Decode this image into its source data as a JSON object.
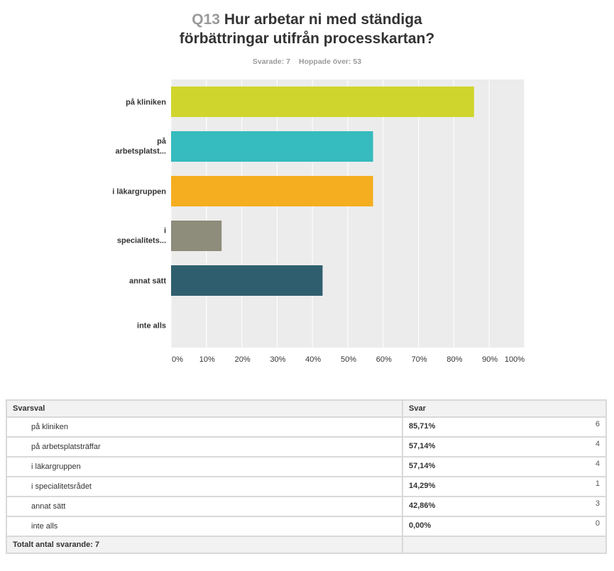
{
  "header": {
    "qnum": "Q13",
    "title_line1": "Hur arbetar ni med ständiga",
    "title_line2": "förbättringar utifrån processkartan?",
    "answered": "Svarade: 7",
    "skipped": "Hoppade över: 53"
  },
  "chart_data": {
    "type": "bar",
    "orientation": "horizontal",
    "categories": [
      "på kliniken",
      "på arbetsplatst...",
      "i läkargruppen",
      "i specialitets...",
      "annat sätt",
      "inte alls"
    ],
    "values": [
      85.71,
      57.14,
      57.14,
      14.29,
      42.86,
      0.0
    ],
    "colors": [
      "#d0d52d",
      "#36bbbe",
      "#f5ae20",
      "#8e8c7a",
      "#2f5f6e",
      "#cccccc"
    ],
    "xlim": [
      0,
      100
    ],
    "xticks": [
      "0%",
      "10%",
      "20%",
      "30%",
      "40%",
      "50%",
      "60%",
      "70%",
      "80%",
      "90%",
      "100%"
    ],
    "grid": true,
    "background": "#ececec",
    "title": "Q13 Hur arbetar ni med ständiga förbättringar utifrån processkartan?"
  },
  "table": {
    "col_choice": "Svarsval",
    "col_answer": "Svar",
    "rows": [
      {
        "label": "på kliniken",
        "pct": "85,71%",
        "count": "6"
      },
      {
        "label": "på arbetsplatsträffar",
        "pct": "57,14%",
        "count": "4"
      },
      {
        "label": "i läkargruppen",
        "pct": "57,14%",
        "count": "4"
      },
      {
        "label": "i specialitetsrådet",
        "pct": "14,29%",
        "count": "1"
      },
      {
        "label": "annat sätt",
        "pct": "42,86%",
        "count": "3"
      },
      {
        "label": "inte alls",
        "pct": "0,00%",
        "count": "0"
      }
    ],
    "total": "Totalt antal svarande: 7"
  }
}
